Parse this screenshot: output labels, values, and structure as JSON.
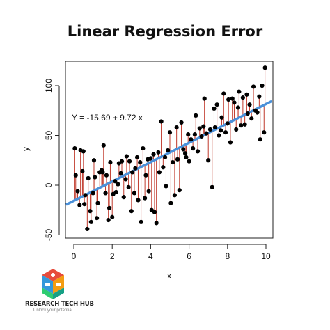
{
  "chart_data": {
    "type": "scatter",
    "title": "Linear Regression Error",
    "xlabel": "x",
    "ylabel": "y",
    "xlim": [
      -0.4,
      10.3
    ],
    "ylim": [
      -52,
      125
    ],
    "xticks": [
      "0",
      "2",
      "4",
      "6",
      "8",
      "10"
    ],
    "yticks": [
      "-50",
      "0",
      "50",
      "100"
    ],
    "equation": "Y =  -15.69 + 9.72 x",
    "fit": {
      "intercept": -15.69,
      "slope": 9.72,
      "color": "#4a90d9"
    },
    "residual_color": "#c0392b",
    "point_color": "#000000",
    "x": [
      0.05,
      0.1,
      0.2,
      0.3,
      0.35,
      0.45,
      0.5,
      0.55,
      0.6,
      0.7,
      0.75,
      0.85,
      0.9,
      1.0,
      1.05,
      1.1,
      1.2,
      1.25,
      1.35,
      1.45,
      1.5,
      1.55,
      1.65,
      1.7,
      1.8,
      1.85,
      1.9,
      2.0,
      2.05,
      2.15,
      2.2,
      2.3,
      2.35,
      2.45,
      2.5,
      2.6,
      2.7,
      2.75,
      2.85,
      2.9,
      3.0,
      3.05,
      3.15,
      3.2,
      3.3,
      3.35,
      3.45,
      3.5,
      3.6,
      3.7,
      3.75,
      3.85,
      3.9,
      4.0,
      4.05,
      4.15,
      4.2,
      4.3,
      4.4,
      4.45,
      4.55,
      4.65,
      4.75,
      4.8,
      4.9,
      5.0,
      5.05,
      5.15,
      5.25,
      5.35,
      5.4,
      5.5,
      5.6,
      5.7,
      5.8,
      5.85,
      5.95,
      6.0,
      6.1,
      6.2,
      6.3,
      6.35,
      6.45,
      6.55,
      6.65,
      6.75,
      6.8,
      6.9,
      7.0,
      7.1,
      7.2,
      7.3,
      7.35,
      7.45,
      7.55,
      7.65,
      7.7,
      7.8,
      7.9,
      8.0,
      8.05,
      8.15,
      8.25,
      8.35,
      8.45,
      8.55,
      8.6,
      8.7,
      8.8,
      8.9,
      9.0,
      9.05,
      9.15,
      9.25,
      9.35,
      9.45,
      9.55,
      9.65,
      9.7,
      9.8,
      9.9,
      9.95
    ],
    "y": [
      37,
      10,
      -6,
      -20,
      35,
      14,
      34,
      -19,
      -10,
      -44,
      7,
      -26,
      -37,
      -8,
      25,
      8,
      -33,
      -18,
      13,
      15,
      13,
      40,
      -8,
      10,
      -35,
      -23,
      23,
      -32,
      -9,
      4,
      -7,
      1,
      22,
      12,
      24,
      -12,
      6,
      29,
      -2,
      24,
      -26,
      13,
      -8,
      17,
      28,
      -15,
      23,
      -37,
      37,
      -13,
      10,
      26,
      -6,
      27,
      -25,
      31,
      -27,
      -38,
      33,
      13,
      64,
      18,
      28,
      -1,
      35,
      53,
      -18,
      23,
      -10,
      58,
      26,
      -5,
      63,
      36,
      32,
      28,
      51,
      24,
      46,
      37,
      51,
      70,
      34,
      57,
      49,
      59,
      87,
      52,
      25,
      56,
      -2,
      77,
      58,
      81,
      50,
      55,
      68,
      92,
      53,
      62,
      86,
      43,
      87,
      83,
      56,
      78,
      94,
      60,
      88,
      61,
      91,
      72,
      81,
      67,
      99,
      75,
      73,
      89,
      46,
      100,
      53,
      118
    ]
  },
  "logo": {
    "name": "RESEARCH TECH HUB",
    "tagline": "Unlock your potential"
  }
}
